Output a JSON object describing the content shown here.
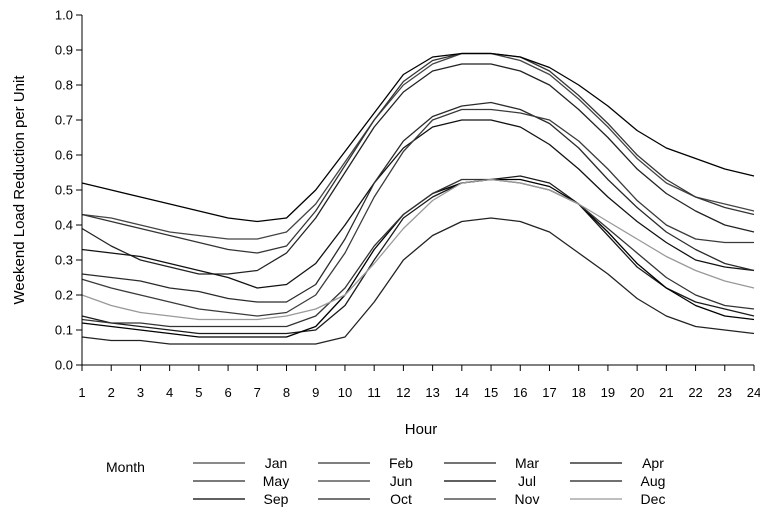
{
  "chart_data": {
    "type": "line",
    "title": "",
    "xlabel": "Hour",
    "ylabel": "Weekend Load Reduction per Unit",
    "xlim": [
      1,
      24
    ],
    "ylim": [
      0.0,
      1.0
    ],
    "x_ticks": [
      "1",
      "2",
      "3",
      "4",
      "5",
      "6",
      "7",
      "8",
      "9",
      "10",
      "11",
      "12",
      "13",
      "14",
      "15",
      "16",
      "17",
      "18",
      "19",
      "20",
      "21",
      "22",
      "23",
      "24"
    ],
    "y_ticks": [
      "0.0",
      "0.1",
      "0.2",
      "0.3",
      "0.4",
      "0.5",
      "0.6",
      "0.7",
      "0.8",
      "0.9",
      "1.0"
    ],
    "grid": false,
    "legend": {
      "title": "Month",
      "placement": "bottom",
      "columns": 4
    },
    "x": [
      1,
      2,
      3,
      4,
      5,
      6,
      7,
      8,
      9,
      10,
      11,
      12,
      13,
      14,
      15,
      16,
      17,
      18,
      19,
      20,
      21,
      22,
      23,
      24
    ],
    "series": [
      {
        "name": "Jan",
        "color": "#444444",
        "values": [
          0.43,
          0.42,
          0.4,
          0.38,
          0.37,
          0.36,
          0.36,
          0.38,
          0.46,
          0.58,
          0.7,
          0.8,
          0.86,
          0.89,
          0.89,
          0.87,
          0.83,
          0.76,
          0.68,
          0.59,
          0.52,
          0.48,
          0.46,
          0.44
        ]
      },
      {
        "name": "Feb",
        "color": "#333333",
        "values": [
          0.43,
          0.41,
          0.39,
          0.37,
          0.35,
          0.33,
          0.32,
          0.34,
          0.44,
          0.57,
          0.7,
          0.81,
          0.87,
          0.89,
          0.89,
          0.88,
          0.84,
          0.77,
          0.69,
          0.6,
          0.53,
          0.48,
          0.45,
          0.43
        ]
      },
      {
        "name": "Mar",
        "color": "#222222",
        "values": [
          0.39,
          0.34,
          0.3,
          0.28,
          0.26,
          0.26,
          0.27,
          0.32,
          0.42,
          0.55,
          0.68,
          0.78,
          0.84,
          0.86,
          0.86,
          0.84,
          0.8,
          0.73,
          0.65,
          0.56,
          0.49,
          0.44,
          0.4,
          0.38
        ]
      },
      {
        "name": "Apr",
        "color": "#111111",
        "values": [
          0.33,
          0.32,
          0.31,
          0.29,
          0.27,
          0.25,
          0.22,
          0.23,
          0.29,
          0.4,
          0.52,
          0.62,
          0.68,
          0.7,
          0.7,
          0.68,
          0.63,
          0.56,
          0.48,
          0.41,
          0.35,
          0.3,
          0.28,
          0.27
        ]
      },
      {
        "name": "May",
        "color": "#2a2a2a",
        "values": [
          0.26,
          0.25,
          0.24,
          0.22,
          0.21,
          0.19,
          0.18,
          0.18,
          0.23,
          0.36,
          0.52,
          0.64,
          0.71,
          0.74,
          0.75,
          0.73,
          0.69,
          0.62,
          0.53,
          0.45,
          0.38,
          0.33,
          0.29,
          0.27
        ]
      },
      {
        "name": "Jun",
        "color": "#3a3a3a",
        "values": [
          0.245,
          0.22,
          0.2,
          0.18,
          0.16,
          0.15,
          0.14,
          0.15,
          0.2,
          0.32,
          0.48,
          0.61,
          0.7,
          0.73,
          0.73,
          0.72,
          0.7,
          0.64,
          0.56,
          0.47,
          0.4,
          0.36,
          0.35,
          0.35
        ]
      },
      {
        "name": "Jul",
        "color": "#000000",
        "values": [
          0.52,
          0.5,
          0.48,
          0.46,
          0.44,
          0.42,
          0.41,
          0.42,
          0.5,
          0.61,
          0.72,
          0.83,
          0.88,
          0.89,
          0.89,
          0.88,
          0.85,
          0.8,
          0.74,
          0.67,
          0.62,
          0.59,
          0.56,
          0.54
        ]
      },
      {
        "name": "Aug",
        "color": "#1a1a1a",
        "values": [
          0.14,
          0.12,
          0.11,
          0.1,
          0.09,
          0.09,
          0.09,
          0.09,
          0.1,
          0.17,
          0.3,
          0.42,
          0.48,
          0.52,
          0.53,
          0.54,
          0.52,
          0.46,
          0.37,
          0.28,
          0.22,
          0.18,
          0.16,
          0.14
        ]
      },
      {
        "name": "Sep",
        "color": "#000000",
        "values": [
          0.12,
          0.11,
          0.1,
          0.09,
          0.08,
          0.08,
          0.08,
          0.08,
          0.11,
          0.2,
          0.33,
          0.43,
          0.49,
          0.52,
          0.53,
          0.53,
          0.51,
          0.46,
          0.38,
          0.29,
          0.22,
          0.17,
          0.14,
          0.13
        ]
      },
      {
        "name": "Oct",
        "color": "#222222",
        "values": [
          0.08,
          0.07,
          0.07,
          0.06,
          0.06,
          0.06,
          0.06,
          0.06,
          0.06,
          0.08,
          0.18,
          0.3,
          0.37,
          0.41,
          0.42,
          0.41,
          0.38,
          0.32,
          0.26,
          0.19,
          0.14,
          0.11,
          0.1,
          0.09
        ]
      },
      {
        "name": "Nov",
        "color": "#333333",
        "values": [
          0.13,
          0.12,
          0.12,
          0.11,
          0.11,
          0.11,
          0.11,
          0.11,
          0.14,
          0.22,
          0.34,
          0.43,
          0.49,
          0.53,
          0.53,
          0.52,
          0.5,
          0.46,
          0.39,
          0.32,
          0.25,
          0.2,
          0.17,
          0.16
        ]
      },
      {
        "name": "Dec",
        "color": "#999999",
        "values": [
          0.2,
          0.17,
          0.15,
          0.14,
          0.13,
          0.13,
          0.13,
          0.14,
          0.16,
          0.2,
          0.29,
          0.39,
          0.47,
          0.52,
          0.53,
          0.52,
          0.5,
          0.46,
          0.41,
          0.36,
          0.31,
          0.27,
          0.24,
          0.22
        ]
      }
    ]
  }
}
